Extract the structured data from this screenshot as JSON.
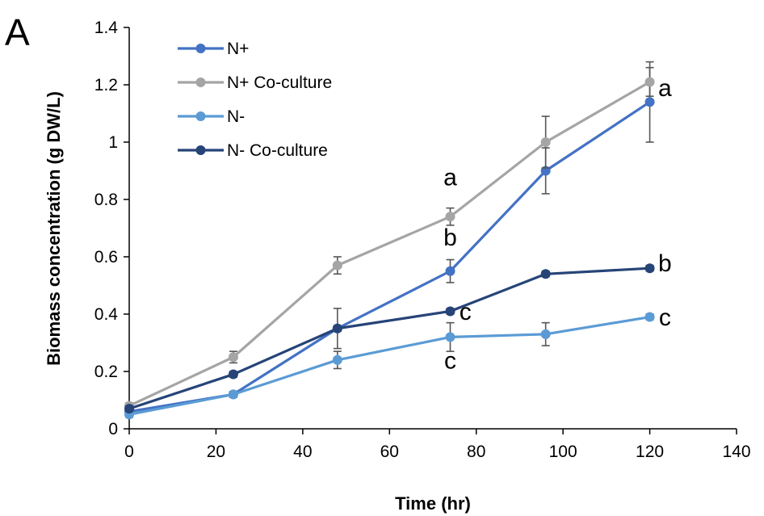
{
  "chart_data": {
    "type": "line",
    "panel_label": "A",
    "xlabel": "Time (hr)",
    "ylabel": "Biomass concentration (g DW/L)",
    "xlim": [
      0,
      140
    ],
    "ylim": [
      0,
      1.4
    ],
    "x_ticks": [
      0,
      20,
      40,
      60,
      80,
      100,
      120,
      140
    ],
    "y_ticks": [
      0,
      0.2,
      0.4,
      0.6,
      0.8,
      1,
      1.2,
      1.4
    ],
    "x_tick_labels": [
      "0",
      "20",
      "40",
      "60",
      "80",
      "100",
      "120",
      "140"
    ],
    "y_tick_labels": [
      "0",
      "0.2",
      "0.4",
      "0.6",
      "0.8",
      "1",
      "1.2",
      "1.4"
    ],
    "grid": false,
    "legend_position": "top-left",
    "series": [
      {
        "name": "N+",
        "color": "#4472c4",
        "x": [
          0,
          24,
          48,
          74,
          96,
          120
        ],
        "y": [
          0.06,
          0.12,
          0.35,
          0.55,
          0.9,
          1.14
        ],
        "err": [
          0.01,
          0.01,
          0.07,
          0.04,
          0.08,
          0.14
        ]
      },
      {
        "name": "N+ Co-culture",
        "color": "#a5a5a5",
        "x": [
          0,
          24,
          48,
          74,
          96,
          120
        ],
        "y": [
          0.08,
          0.25,
          0.57,
          0.74,
          1.0,
          1.21
        ],
        "err": [
          0.01,
          0.02,
          0.03,
          0.03,
          0.09,
          0.05
        ]
      },
      {
        "name": "N-",
        "color": "#5b9bd5",
        "x": [
          0,
          24,
          48,
          74,
          96,
          120
        ],
        "y": [
          0.05,
          0.12,
          0.24,
          0.32,
          0.33,
          0.39
        ],
        "err": [
          0.01,
          0.01,
          0.03,
          0.05,
          0.04,
          0.01
        ]
      },
      {
        "name": "N- Co-culture",
        "color": "#264478",
        "x": [
          0,
          24,
          48,
          74,
          96,
          120
        ],
        "y": [
          0.07,
          0.19,
          0.35,
          0.41,
          0.54,
          0.56
        ],
        "err": [
          0.01,
          0.01,
          0.01,
          0.01,
          0.01,
          0.01
        ]
      }
    ],
    "annotations": [
      {
        "text": "a",
        "x": 74,
        "y": 0.85
      },
      {
        "text": "b",
        "x": 74,
        "y": 0.64
      },
      {
        "text": "c",
        "x": 77.5,
        "y": 0.38
      },
      {
        "text": "c",
        "x": 74,
        "y": 0.21
      },
      {
        "text": "a",
        "x": 123.5,
        "y": 1.16
      },
      {
        "text": "b",
        "x": 123.5,
        "y": 0.55
      },
      {
        "text": "c",
        "x": 123.5,
        "y": 0.36
      }
    ]
  }
}
